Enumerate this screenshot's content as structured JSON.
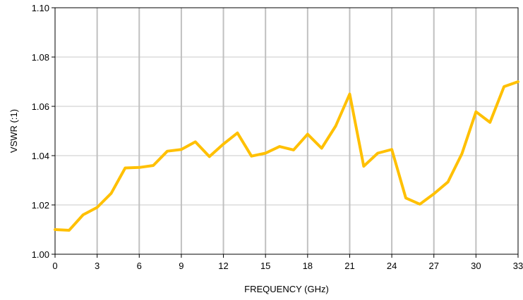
{
  "chart_data": {
    "type": "line",
    "title": "",
    "xlabel": "FREQUENCY  (GHz)",
    "ylabel": "VSWR (:1)",
    "xlim": [
      0,
      33
    ],
    "ylim": [
      1.0,
      1.1
    ],
    "x_ticks": [
      0,
      3,
      6,
      9,
      12,
      15,
      18,
      21,
      24,
      27,
      30,
      33
    ],
    "y_ticks": [
      "1.00",
      "1.02",
      "1.04",
      "1.06",
      "1.08",
      "1.10"
    ],
    "grid": true,
    "legend": false,
    "series": [
      {
        "color": "#FFC000",
        "x": [
          0,
          1,
          2,
          3,
          4,
          5,
          6,
          7,
          8,
          9,
          10,
          11,
          12,
          13,
          14,
          15,
          16,
          17,
          18,
          19,
          20,
          21,
          22,
          23,
          24,
          25,
          26,
          27,
          28,
          29,
          30,
          31,
          32,
          33
        ],
        "y": [
          1.01,
          1.0097,
          1.016,
          1.019,
          1.0247,
          1.035,
          1.0352,
          1.036,
          1.0418,
          1.0425,
          1.0456,
          1.0396,
          1.0447,
          1.0492,
          1.0398,
          1.041,
          1.0437,
          1.0423,
          1.0487,
          1.043,
          1.052,
          1.065,
          1.0357,
          1.041,
          1.0425,
          1.0228,
          1.0203,
          1.0245,
          1.0293,
          1.0408,
          1.0578,
          1.0535,
          1.068,
          1.07
        ]
      }
    ]
  }
}
